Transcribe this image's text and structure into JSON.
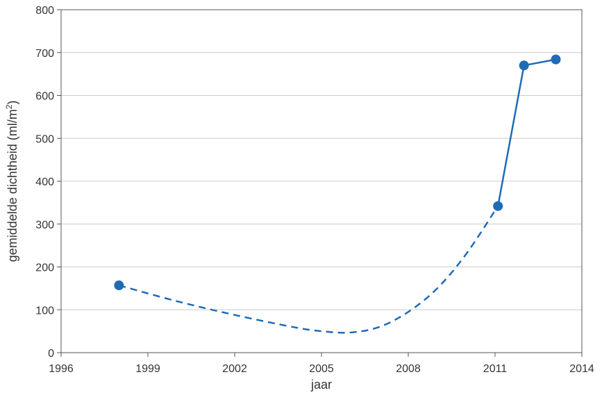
{
  "chart_data": {
    "type": "line",
    "title": "",
    "xlabel": "jaar",
    "ylabel_main": "gemiddelde dichtheid (ml/m",
    "ylabel_sup": "2",
    "ylabel_close": ")",
    "xlim": [
      1996,
      2014
    ],
    "ylim": [
      0,
      800
    ],
    "xticks": [
      "1996",
      "1999",
      "2002",
      "2005",
      "2008",
      "2011",
      "2014"
    ],
    "yticks": [
      "0",
      "100",
      "200",
      "300",
      "400",
      "500",
      "600",
      "700",
      "800"
    ],
    "grid": true,
    "color": "#1f6bb5",
    "points": [
      {
        "x": 1998,
        "y": 157
      },
      {
        "x": 2011.1,
        "y": 342
      },
      {
        "x": 2012,
        "y": 670
      },
      {
        "x": 2013.1,
        "y": 684
      }
    ],
    "dashed_curve": [
      {
        "x": 1998,
        "y": 157
      },
      {
        "x": 2000,
        "y": 120
      },
      {
        "x": 2002,
        "y": 88
      },
      {
        "x": 2004,
        "y": 60
      },
      {
        "x": 2005,
        "y": 50
      },
      {
        "x": 2006,
        "y": 47
      },
      {
        "x": 2007,
        "y": 60
      },
      {
        "x": 2008,
        "y": 95
      },
      {
        "x": 2009,
        "y": 150
      },
      {
        "x": 2010,
        "y": 230
      },
      {
        "x": 2011.1,
        "y": 342
      }
    ],
    "solid_line": [
      {
        "x": 2011.1,
        "y": 342
      },
      {
        "x": 2012,
        "y": 670
      },
      {
        "x": 2013.1,
        "y": 684
      }
    ]
  }
}
